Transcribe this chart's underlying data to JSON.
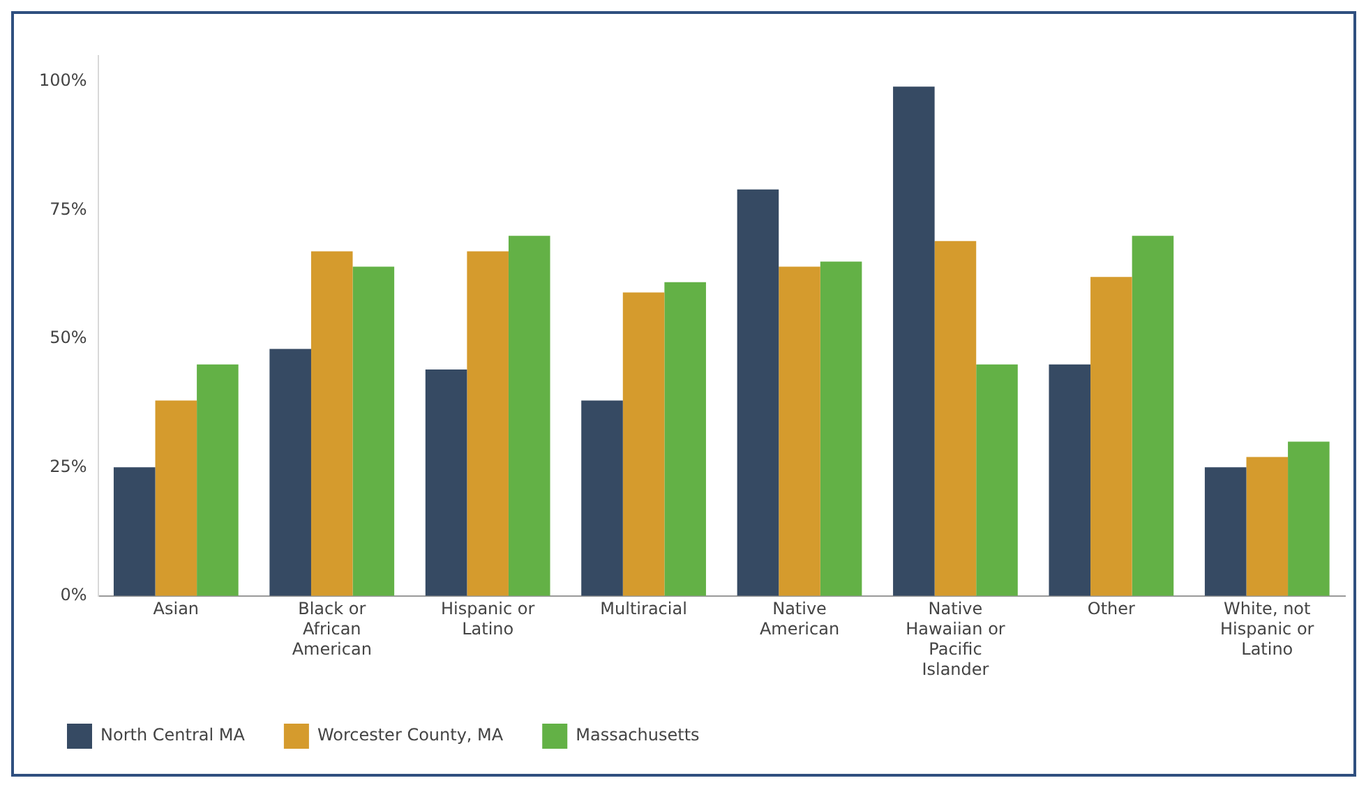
{
  "chart_data": {
    "type": "bar",
    "categories": [
      "Asian",
      "Black or African American",
      "Hispanic or Latino",
      "Multiracial",
      "Native American",
      "Native Hawaiian or Pacific Islander",
      "Other",
      "White, not Hispanic or Latino"
    ],
    "series": [
      {
        "name": "North Central MA",
        "color": "#364a63",
        "values": [
          25,
          48,
          44,
          38,
          79,
          99,
          45,
          25
        ]
      },
      {
        "name": "Worcester County, MA",
        "color": "#d59b2d",
        "values": [
          38,
          67,
          67,
          59,
          64,
          69,
          62,
          27
        ]
      },
      {
        "name": "Massachusetts",
        "color": "#63b146",
        "values": [
          45,
          64,
          70,
          61,
          65,
          45,
          70,
          30
        ]
      }
    ],
    "ylim": [
      0,
      105
    ],
    "yticks": [
      {
        "value": 0,
        "label": "0%"
      },
      {
        "value": 25,
        "label": "25%"
      },
      {
        "value": 50,
        "label": "50%"
      },
      {
        "value": 75,
        "label": "75%"
      },
      {
        "value": 100,
        "label": "100%"
      }
    ],
    "grid": false,
    "legend": "bottom left"
  }
}
